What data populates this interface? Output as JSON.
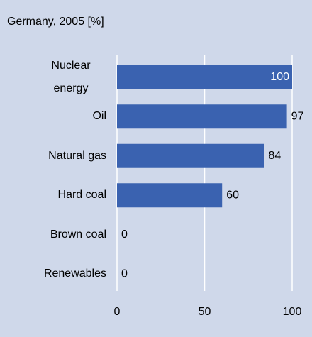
{
  "chart_data": {
    "type": "bar",
    "orientation": "horizontal",
    "title": "Germany, 2005 [%]",
    "categories": [
      "Nuclear energy",
      "Oil",
      "Natural gas",
      "Hard coal",
      "Brown coal",
      "Renewables"
    ],
    "values": [
      100,
      97,
      84,
      60,
      0,
      0
    ],
    "color": "#3a62b0",
    "xlim": [
      0,
      100
    ],
    "xticks": [
      0,
      50,
      100
    ],
    "grid": true
  }
}
